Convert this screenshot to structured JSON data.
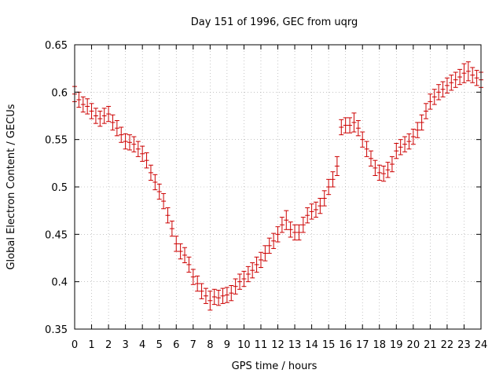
{
  "chart_data": {
    "type": "scatter",
    "title": "Day 151 of 1996, GEC from uqrg",
    "xlabel": "GPS time / hours",
    "ylabel": "Global Electron Content / GECUs",
    "xlim": [
      0,
      24
    ],
    "ylim": [
      0.35,
      0.65
    ],
    "grid": true,
    "x_ticks": [
      0,
      1,
      2,
      3,
      4,
      5,
      6,
      7,
      8,
      9,
      10,
      11,
      12,
      13,
      14,
      15,
      16,
      17,
      18,
      19,
      20,
      21,
      22,
      23,
      24
    ],
    "x_tick_labels": [
      "0",
      "1",
      "2",
      "3",
      "4",
      "5",
      "6",
      "7",
      "8",
      "9",
      "10",
      "11",
      "12",
      "13",
      "14",
      "15",
      "16",
      "17",
      "18",
      "19",
      "20",
      "21",
      "22",
      "23",
      "24"
    ],
    "y_ticks": [
      0.35,
      0.4,
      0.45,
      0.5,
      0.55,
      0.6,
      0.65
    ],
    "y_tick_labels": [
      "0.35",
      "0.4",
      "0.45",
      "0.5",
      "0.55",
      "0.6",
      "0.65"
    ],
    "series": [
      {
        "color": "#cc0000",
        "marker": "errorbar-cross",
        "x": [
          0,
          0.25,
          0.5,
          0.75,
          1,
          1.25,
          1.5,
          1.75,
          2,
          2.25,
          2.5,
          2.75,
          3,
          3.25,
          3.5,
          3.75,
          4,
          4.25,
          4.5,
          4.75,
          5,
          5.25,
          5.5,
          5.75,
          6,
          6.25,
          6.5,
          6.75,
          7,
          7.25,
          7.5,
          7.75,
          8,
          8.25,
          8.5,
          8.75,
          9,
          9.25,
          9.5,
          9.75,
          10,
          10.25,
          10.5,
          10.75,
          11,
          11.25,
          11.5,
          11.75,
          12,
          12.25,
          12.5,
          12.75,
          13,
          13.25,
          13.5,
          13.75,
          14,
          14.25,
          14.5,
          14.75,
          15,
          15.25,
          15.5,
          15.75,
          16,
          16.25,
          16.5,
          16.75,
          17,
          17.25,
          17.5,
          17.75,
          18,
          18.25,
          18.5,
          18.75,
          19,
          19.25,
          19.5,
          19.75,
          20,
          20.25,
          20.5,
          20.75,
          21,
          21.25,
          21.5,
          21.75,
          22,
          22.25,
          22.5,
          22.75,
          23,
          23.25,
          23.5,
          23.75,
          24
        ],
        "y": [
          0.598,
          0.592,
          0.587,
          0.585,
          0.58,
          0.575,
          0.572,
          0.575,
          0.577,
          0.568,
          0.562,
          0.555,
          0.548,
          0.547,
          0.545,
          0.54,
          0.535,
          0.528,
          0.515,
          0.505,
          0.495,
          0.485,
          0.47,
          0.456,
          0.44,
          0.432,
          0.428,
          0.418,
          0.405,
          0.398,
          0.39,
          0.385,
          0.38,
          0.384,
          0.383,
          0.385,
          0.386,
          0.388,
          0.395,
          0.4,
          0.403,
          0.408,
          0.412,
          0.418,
          0.423,
          0.43,
          0.438,
          0.443,
          0.45,
          0.46,
          0.465,
          0.455,
          0.452,
          0.452,
          0.46,
          0.47,
          0.474,
          0.476,
          0.48,
          0.488,
          0.5,
          0.508,
          0.522,
          0.563,
          0.565,
          0.565,
          0.568,
          0.562,
          0.55,
          0.54,
          0.53,
          0.52,
          0.515,
          0.514,
          0.518,
          0.524,
          0.538,
          0.542,
          0.545,
          0.548,
          0.553,
          0.56,
          0.568,
          0.58,
          0.59,
          0.595,
          0.6,
          0.603,
          0.607,
          0.61,
          0.613,
          0.616,
          0.62,
          0.622,
          0.618,
          0.615,
          0.613
        ],
        "err": [
          0.008,
          0.008,
          0.008,
          0.008,
          0.008,
          0.008,
          0.008,
          0.008,
          0.008,
          0.008,
          0.008,
          0.008,
          0.008,
          0.008,
          0.008,
          0.008,
          0.008,
          0.008,
          0.008,
          0.008,
          0.008,
          0.008,
          0.008,
          0.008,
          0.008,
          0.008,
          0.008,
          0.008,
          0.008,
          0.008,
          0.008,
          0.008,
          0.01,
          0.008,
          0.008,
          0.008,
          0.008,
          0.008,
          0.008,
          0.008,
          0.008,
          0.008,
          0.008,
          0.008,
          0.008,
          0.008,
          0.008,
          0.008,
          0.008,
          0.008,
          0.01,
          0.008,
          0.008,
          0.008,
          0.008,
          0.008,
          0.008,
          0.008,
          0.008,
          0.008,
          0.008,
          0.008,
          0.01,
          0.008,
          0.008,
          0.008,
          0.01,
          0.008,
          0.008,
          0.008,
          0.008,
          0.008,
          0.008,
          0.008,
          0.008,
          0.008,
          0.008,
          0.008,
          0.008,
          0.008,
          0.008,
          0.008,
          0.008,
          0.008,
          0.008,
          0.008,
          0.008,
          0.008,
          0.008,
          0.008,
          0.008,
          0.008,
          0.01,
          0.01,
          0.008,
          0.008,
          0.008
        ]
      }
    ]
  }
}
